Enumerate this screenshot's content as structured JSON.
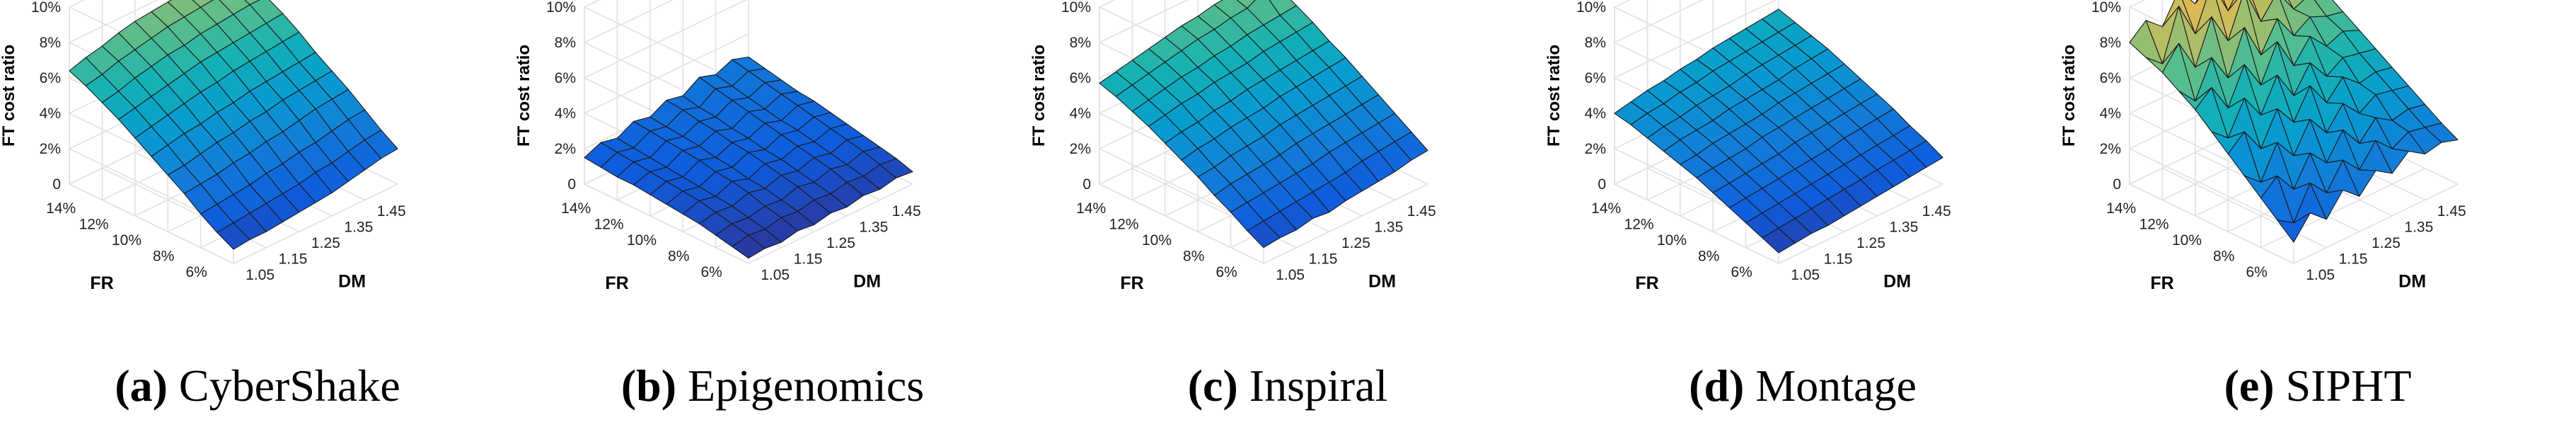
{
  "figure": {
    "z_label": "FT cost ratio",
    "fr_label": "FR",
    "dm_label": "DM",
    "z_ticks": [
      "0",
      "2%",
      "4%",
      "6%",
      "8%",
      "10%"
    ],
    "fr_ticks": [
      "6%",
      "8%",
      "10%",
      "12%",
      "14%"
    ],
    "dm_ticks": [
      "1.05",
      "1.15",
      "1.25",
      "1.35",
      "1.45"
    ]
  },
  "chart_data": [
    {
      "type": "surface",
      "panel_label": "(a)",
      "title": "CyberShake",
      "xlabel": "DM",
      "ylabel": "FR",
      "zlabel": "FT cost ratio",
      "x": [
        1.0,
        1.05,
        1.1,
        1.15,
        1.2,
        1.25,
        1.3,
        1.35,
        1.4,
        1.45,
        1.5
      ],
      "y": [
        5,
        6,
        7,
        8,
        9,
        10,
        11,
        12,
        13,
        14,
        15
      ],
      "z_range_percent": [
        0,
        10
      ],
      "z_percent": [
        [
          0.8,
          0.9,
          0.9,
          1.0,
          1.1,
          1.2,
          1.3,
          1.5,
          1.7,
          1.9,
          2.0
        ],
        [
          1.3,
          1.4,
          1.5,
          1.6,
          1.7,
          1.8,
          2.0,
          2.1,
          2.3,
          2.5,
          2.6
        ],
        [
          1.9,
          2.0,
          2.1,
          2.2,
          2.4,
          2.5,
          2.7,
          2.8,
          3.0,
          3.2,
          3.3
        ],
        [
          2.6,
          2.7,
          2.8,
          3.0,
          3.1,
          3.3,
          3.4,
          3.6,
          3.8,
          3.9,
          4.0
        ],
        [
          3.2,
          3.3,
          3.5,
          3.7,
          3.8,
          4.0,
          4.1,
          4.3,
          4.4,
          4.5,
          4.6
        ],
        [
          3.8,
          4.0,
          4.2,
          4.3,
          4.5,
          4.6,
          4.8,
          4.9,
          5.0,
          5.1,
          5.2
        ],
        [
          4.4,
          4.6,
          4.8,
          5.0,
          5.2,
          5.3,
          5.5,
          5.6,
          5.7,
          5.8,
          5.9
        ],
        [
          5.0,
          5.2,
          5.4,
          5.6,
          5.8,
          6.0,
          6.1,
          6.2,
          6.3,
          6.4,
          6.5
        ],
        [
          5.5,
          5.7,
          6.0,
          6.2,
          6.4,
          6.5,
          6.7,
          6.8,
          6.9,
          7.0,
          7.0
        ],
        [
          6.0,
          6.2,
          6.5,
          6.7,
          6.9,
          7.1,
          7.2,
          7.3,
          7.4,
          7.4,
          7.5
        ],
        [
          6.4,
          6.7,
          6.9,
          7.2,
          7.4,
          7.5,
          7.6,
          7.7,
          7.8,
          7.8,
          7.9
        ]
      ]
    },
    {
      "type": "surface",
      "panel_label": "(b)",
      "title": "Epigenomics",
      "xlabel": "DM",
      "ylabel": "FR",
      "zlabel": "FT cost ratio",
      "x": [
        1.0,
        1.05,
        1.1,
        1.15,
        1.2,
        1.25,
        1.3,
        1.35,
        1.4,
        1.45,
        1.5
      ],
      "y": [
        5,
        6,
        7,
        8,
        9,
        10,
        11,
        12,
        13,
        14,
        15
      ],
      "z_range_percent": [
        0,
        10
      ],
      "z_percent": [
        [
          0.3,
          0.4,
          0.3,
          0.5,
          0.4,
          0.6,
          0.5,
          0.7,
          0.6,
          0.8,
          0.7
        ],
        [
          0.5,
          0.7,
          0.6,
          0.8,
          0.7,
          0.9,
          0.8,
          1.0,
          0.9,
          1.1,
          1.0
        ],
        [
          0.7,
          0.9,
          0.8,
          1.0,
          0.9,
          1.2,
          1.0,
          1.3,
          1.1,
          1.4,
          1.2
        ],
        [
          0.9,
          1.1,
          1.0,
          1.3,
          1.1,
          1.4,
          1.2,
          1.5,
          1.3,
          1.6,
          1.4
        ],
        [
          1.0,
          1.3,
          1.1,
          1.5,
          1.2,
          1.6,
          1.4,
          1.7,
          1.5,
          1.8,
          1.6
        ],
        [
          1.1,
          1.4,
          1.2,
          1.6,
          1.4,
          1.8,
          1.5,
          1.9,
          1.7,
          2.0,
          1.8
        ],
        [
          1.2,
          1.5,
          1.3,
          1.8,
          1.5,
          1.9,
          1.7,
          2.1,
          1.8,
          2.2,
          2.0
        ],
        [
          1.3,
          1.6,
          1.4,
          1.9,
          1.7,
          2.1,
          1.8,
          2.3,
          2.0,
          2.4,
          2.1
        ],
        [
          1.3,
          1.7,
          1.5,
          2.0,
          1.8,
          2.2,
          2.0,
          2.5,
          2.2,
          2.6,
          2.3
        ],
        [
          1.4,
          1.8,
          1.6,
          2.1,
          1.9,
          2.4,
          2.1,
          2.7,
          2.4,
          2.8,
          2.5
        ],
        [
          1.5,
          1.9,
          1.7,
          2.2,
          2.0,
          2.5,
          2.3,
          2.9,
          2.6,
          3.0,
          2.7
        ]
      ]
    },
    {
      "type": "surface",
      "panel_label": "(c)",
      "title": "Inspiral",
      "xlabel": "DM",
      "ylabel": "FR",
      "zlabel": "FT cost ratio",
      "x": [
        1.0,
        1.05,
        1.1,
        1.15,
        1.2,
        1.25,
        1.3,
        1.35,
        1.4,
        1.45,
        1.5
      ],
      "y": [
        5,
        6,
        7,
        8,
        9,
        10,
        11,
        12,
        13,
        14,
        15
      ],
      "z_range_percent": [
        0,
        10
      ],
      "z_percent": [
        [
          0.9,
          1.0,
          1.0,
          1.2,
          1.1,
          1.3,
          1.4,
          1.5,
          1.6,
          1.8,
          1.9
        ],
        [
          1.4,
          1.5,
          1.6,
          1.7,
          1.8,
          1.9,
          2.0,
          2.2,
          2.3,
          2.4,
          2.5
        ],
        [
          2.0,
          2.1,
          2.2,
          2.3,
          2.4,
          2.5,
          2.7,
          2.8,
          2.9,
          3.0,
          3.1
        ],
        [
          2.5,
          2.7,
          2.8,
          2.9,
          3.0,
          3.2,
          3.3,
          3.4,
          3.5,
          3.6,
          3.7
        ],
        [
          3.1,
          3.2,
          3.4,
          3.5,
          3.6,
          3.8,
          3.9,
          4.0,
          4.1,
          4.2,
          4.3
        ],
        [
          3.6,
          3.8,
          3.9,
          4.1,
          4.2,
          4.3,
          4.5,
          4.6,
          4.7,
          4.8,
          4.9
        ],
        [
          4.1,
          4.3,
          4.4,
          4.6,
          4.7,
          4.9,
          5.0,
          5.1,
          5.2,
          5.3,
          5.4
        ],
        [
          4.6,
          4.8,
          5.0,
          5.1,
          5.3,
          5.4,
          5.5,
          5.7,
          5.8,
          5.9,
          6.0
        ],
        [
          5.0,
          5.2,
          5.4,
          5.6,
          5.7,
          5.9,
          6.0,
          6.2,
          6.3,
          6.4,
          6.5
        ],
        [
          5.4,
          5.6,
          5.8,
          6.0,
          6.2,
          6.4,
          6.5,
          6.7,
          6.8,
          7.3,
          7.0
        ],
        [
          5.7,
          5.9,
          6.1,
          6.3,
          6.5,
          6.7,
          6.8,
          7.0,
          7.1,
          7.2,
          7.3
        ]
      ]
    },
    {
      "type": "surface",
      "panel_label": "(d)",
      "title": "Montage",
      "xlabel": "DM",
      "ylabel": "FR",
      "zlabel": "FT cost ratio",
      "x": [
        1.0,
        1.05,
        1.1,
        1.15,
        1.2,
        1.25,
        1.3,
        1.35,
        1.4,
        1.45,
        1.5
      ],
      "y": [
        5,
        6,
        7,
        8,
        9,
        10,
        11,
        12,
        13,
        14,
        15
      ],
      "z_range_percent": [
        0,
        10
      ],
      "z_percent": [
        [
          0.6,
          0.7,
          0.8,
          0.8,
          0.9,
          1.0,
          1.1,
          1.2,
          1.3,
          1.4,
          1.5
        ],
        [
          1.0,
          1.1,
          1.2,
          1.3,
          1.4,
          1.5,
          1.6,
          1.7,
          1.8,
          1.9,
          2.0
        ],
        [
          1.4,
          1.5,
          1.6,
          1.7,
          1.8,
          1.9,
          2.0,
          2.1,
          2.2,
          2.3,
          2.4
        ],
        [
          1.8,
          1.9,
          2.0,
          2.1,
          2.2,
          2.3,
          2.4,
          2.6,
          2.7,
          2.8,
          2.9
        ],
        [
          2.2,
          2.3,
          2.4,
          2.5,
          2.6,
          2.8,
          2.9,
          3.0,
          3.1,
          3.2,
          3.3
        ],
        [
          2.6,
          2.7,
          2.8,
          2.9,
          3.1,
          3.2,
          3.3,
          3.4,
          3.5,
          3.6,
          3.7
        ],
        [
          2.9,
          3.0,
          3.2,
          3.3,
          3.4,
          3.5,
          3.7,
          3.8,
          3.9,
          4.0,
          4.1
        ],
        [
          3.2,
          3.4,
          3.5,
          3.6,
          3.8,
          3.9,
          4.0,
          4.1,
          4.3,
          4.4,
          4.5
        ],
        [
          3.5,
          3.7,
          3.8,
          4.0,
          4.1,
          4.2,
          4.4,
          4.5,
          4.6,
          4.7,
          4.8
        ],
        [
          3.8,
          4.0,
          4.1,
          4.3,
          4.4,
          4.6,
          4.7,
          4.8,
          4.9,
          5.0,
          5.1
        ],
        [
          4.0,
          4.2,
          4.4,
          4.5,
          4.7,
          4.8,
          5.0,
          5.1,
          5.2,
          5.3,
          5.4
        ]
      ]
    },
    {
      "type": "surface",
      "panel_label": "(e)",
      "title": "SIPHT",
      "xlabel": "DM",
      "ylabel": "FR",
      "zlabel": "FT cost ratio",
      "x": [
        1.0,
        1.05,
        1.1,
        1.15,
        1.2,
        1.25,
        1.3,
        1.35,
        1.4,
        1.45,
        1.5
      ],
      "y": [
        5,
        6,
        7,
        8,
        9,
        10,
        11,
        12,
        13,
        14,
        15
      ],
      "z_range_percent": [
        0,
        10
      ],
      "z_percent": [
        [
          1.2,
          2.4,
          1.6,
          2.8,
          2.0,
          3.0,
          2.4,
          3.2,
          2.6,
          2.8,
          2.5
        ],
        [
          2.0,
          1.4,
          3.2,
          2.2,
          3.6,
          2.6,
          3.8,
          2.9,
          3.4,
          3.2,
          3.0
        ],
        [
          2.8,
          3.6,
          2.4,
          4.0,
          3.0,
          4.4,
          3.2,
          4.2,
          3.6,
          3.8,
          3.6
        ],
        [
          3.6,
          2.8,
          4.6,
          3.4,
          5.0,
          3.8,
          5.0,
          4.0,
          4.6,
          4.4,
          4.2
        ],
        [
          4.4,
          5.2,
          3.8,
          5.6,
          4.4,
          6.0,
          4.6,
          5.6,
          4.8,
          5.0,
          4.8
        ],
        [
          5.2,
          4.4,
          6.2,
          4.8,
          6.6,
          5.0,
          6.4,
          5.2,
          5.8,
          5.6,
          5.4
        ],
        [
          6.0,
          6.8,
          5.2,
          7.2,
          5.6,
          7.6,
          5.8,
          7.0,
          6.0,
          6.4,
          6.0
        ],
        [
          6.6,
          5.6,
          7.6,
          6.0,
          8.4,
          6.4,
          8.0,
          6.6,
          7.2,
          6.8,
          6.6
        ],
        [
          7.2,
          8.4,
          6.6,
          9.0,
          7.2,
          9.6,
          7.4,
          8.6,
          7.2,
          7.6,
          7.2
        ],
        [
          7.6,
          6.8,
          9.6,
          7.6,
          10.0,
          8.0,
          9.4,
          8.0,
          8.4,
          8.0,
          7.6
        ],
        [
          8.0,
          8.8,
          8.0,
          9.6,
          8.4,
          9.8,
          8.6,
          9.2,
          8.4,
          8.2,
          8.0
        ]
      ]
    }
  ]
}
